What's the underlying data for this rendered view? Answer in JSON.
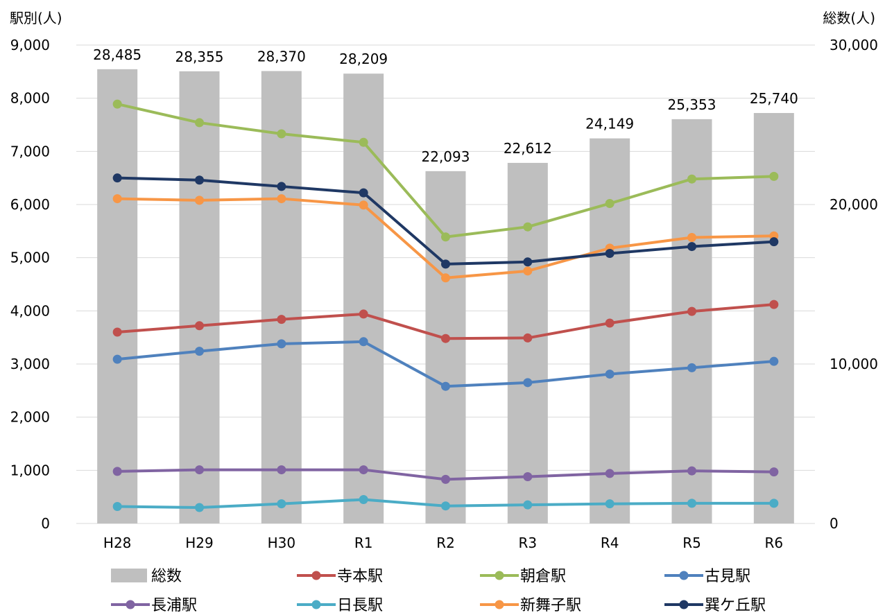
{
  "chart_data": {
    "type": "bar",
    "categories": [
      "H28",
      "H29",
      "H30",
      "R1",
      "R2",
      "R3",
      "R4",
      "R5",
      "R6"
    ],
    "left_axis_title": "駅別(人)",
    "right_axis_title": "総数(人)",
    "left_axis": {
      "min": 0,
      "max": 9000,
      "ticks": [
        "0",
        "1,000",
        "2,000",
        "3,000",
        "4,000",
        "5,000",
        "6,000",
        "7,000",
        "8,000",
        "9,000"
      ]
    },
    "right_axis": {
      "min": 0,
      "max": 30000,
      "ticks": [
        "0",
        "10,000",
        "20,000",
        "30,000"
      ]
    },
    "grid": true,
    "legend_placement": "bottom",
    "bar_series": {
      "name": "総数",
      "color": "#bfbfbf",
      "values": [
        28485,
        28355,
        28370,
        28209,
        22093,
        22612,
        24149,
        25353,
        25740
      ],
      "labels": [
        "28,485",
        "28,355",
        "28,370",
        "28,209",
        "22,093",
        "22,612",
        "24,149",
        "25,353",
        "25,740"
      ]
    },
    "line_series": [
      {
        "name": "寺本駅",
        "color": "#c0504d",
        "values": [
          3600,
          3720,
          3840,
          3940,
          3480,
          3490,
          3770,
          3990,
          4120
        ]
      },
      {
        "name": "朝倉駅",
        "color": "#9bbb59",
        "values": [
          7890,
          7540,
          7330,
          7170,
          5390,
          5580,
          6020,
          6480,
          6530
        ]
      },
      {
        "name": "古見駅",
        "color": "#4f81bd",
        "values": [
          3090,
          3240,
          3380,
          3420,
          2580,
          2650,
          2810,
          2930,
          3050
        ]
      },
      {
        "name": "長浦駅",
        "color": "#8064a2",
        "values": [
          980,
          1010,
          1010,
          1010,
          830,
          880,
          940,
          990,
          970
        ]
      },
      {
        "name": "日長駅",
        "color": "#4bacc6",
        "values": [
          320,
          300,
          370,
          450,
          330,
          350,
          370,
          380,
          380
        ]
      },
      {
        "name": "新舞子駅",
        "color": "#f79646",
        "values": [
          6110,
          6080,
          6110,
          5990,
          4620,
          4750,
          5180,
          5380,
          5410
        ]
      },
      {
        "name": "巽ケ丘駅",
        "color": "#1f3864",
        "values": [
          6500,
          6460,
          6340,
          6220,
          4880,
          4920,
          5080,
          5210,
          5300
        ]
      }
    ],
    "legend": [
      "総数",
      "寺本駅",
      "朝倉駅",
      "古見駅",
      "長浦駅",
      "日長駅",
      "新舞子駅",
      "巽ケ丘駅"
    ]
  }
}
